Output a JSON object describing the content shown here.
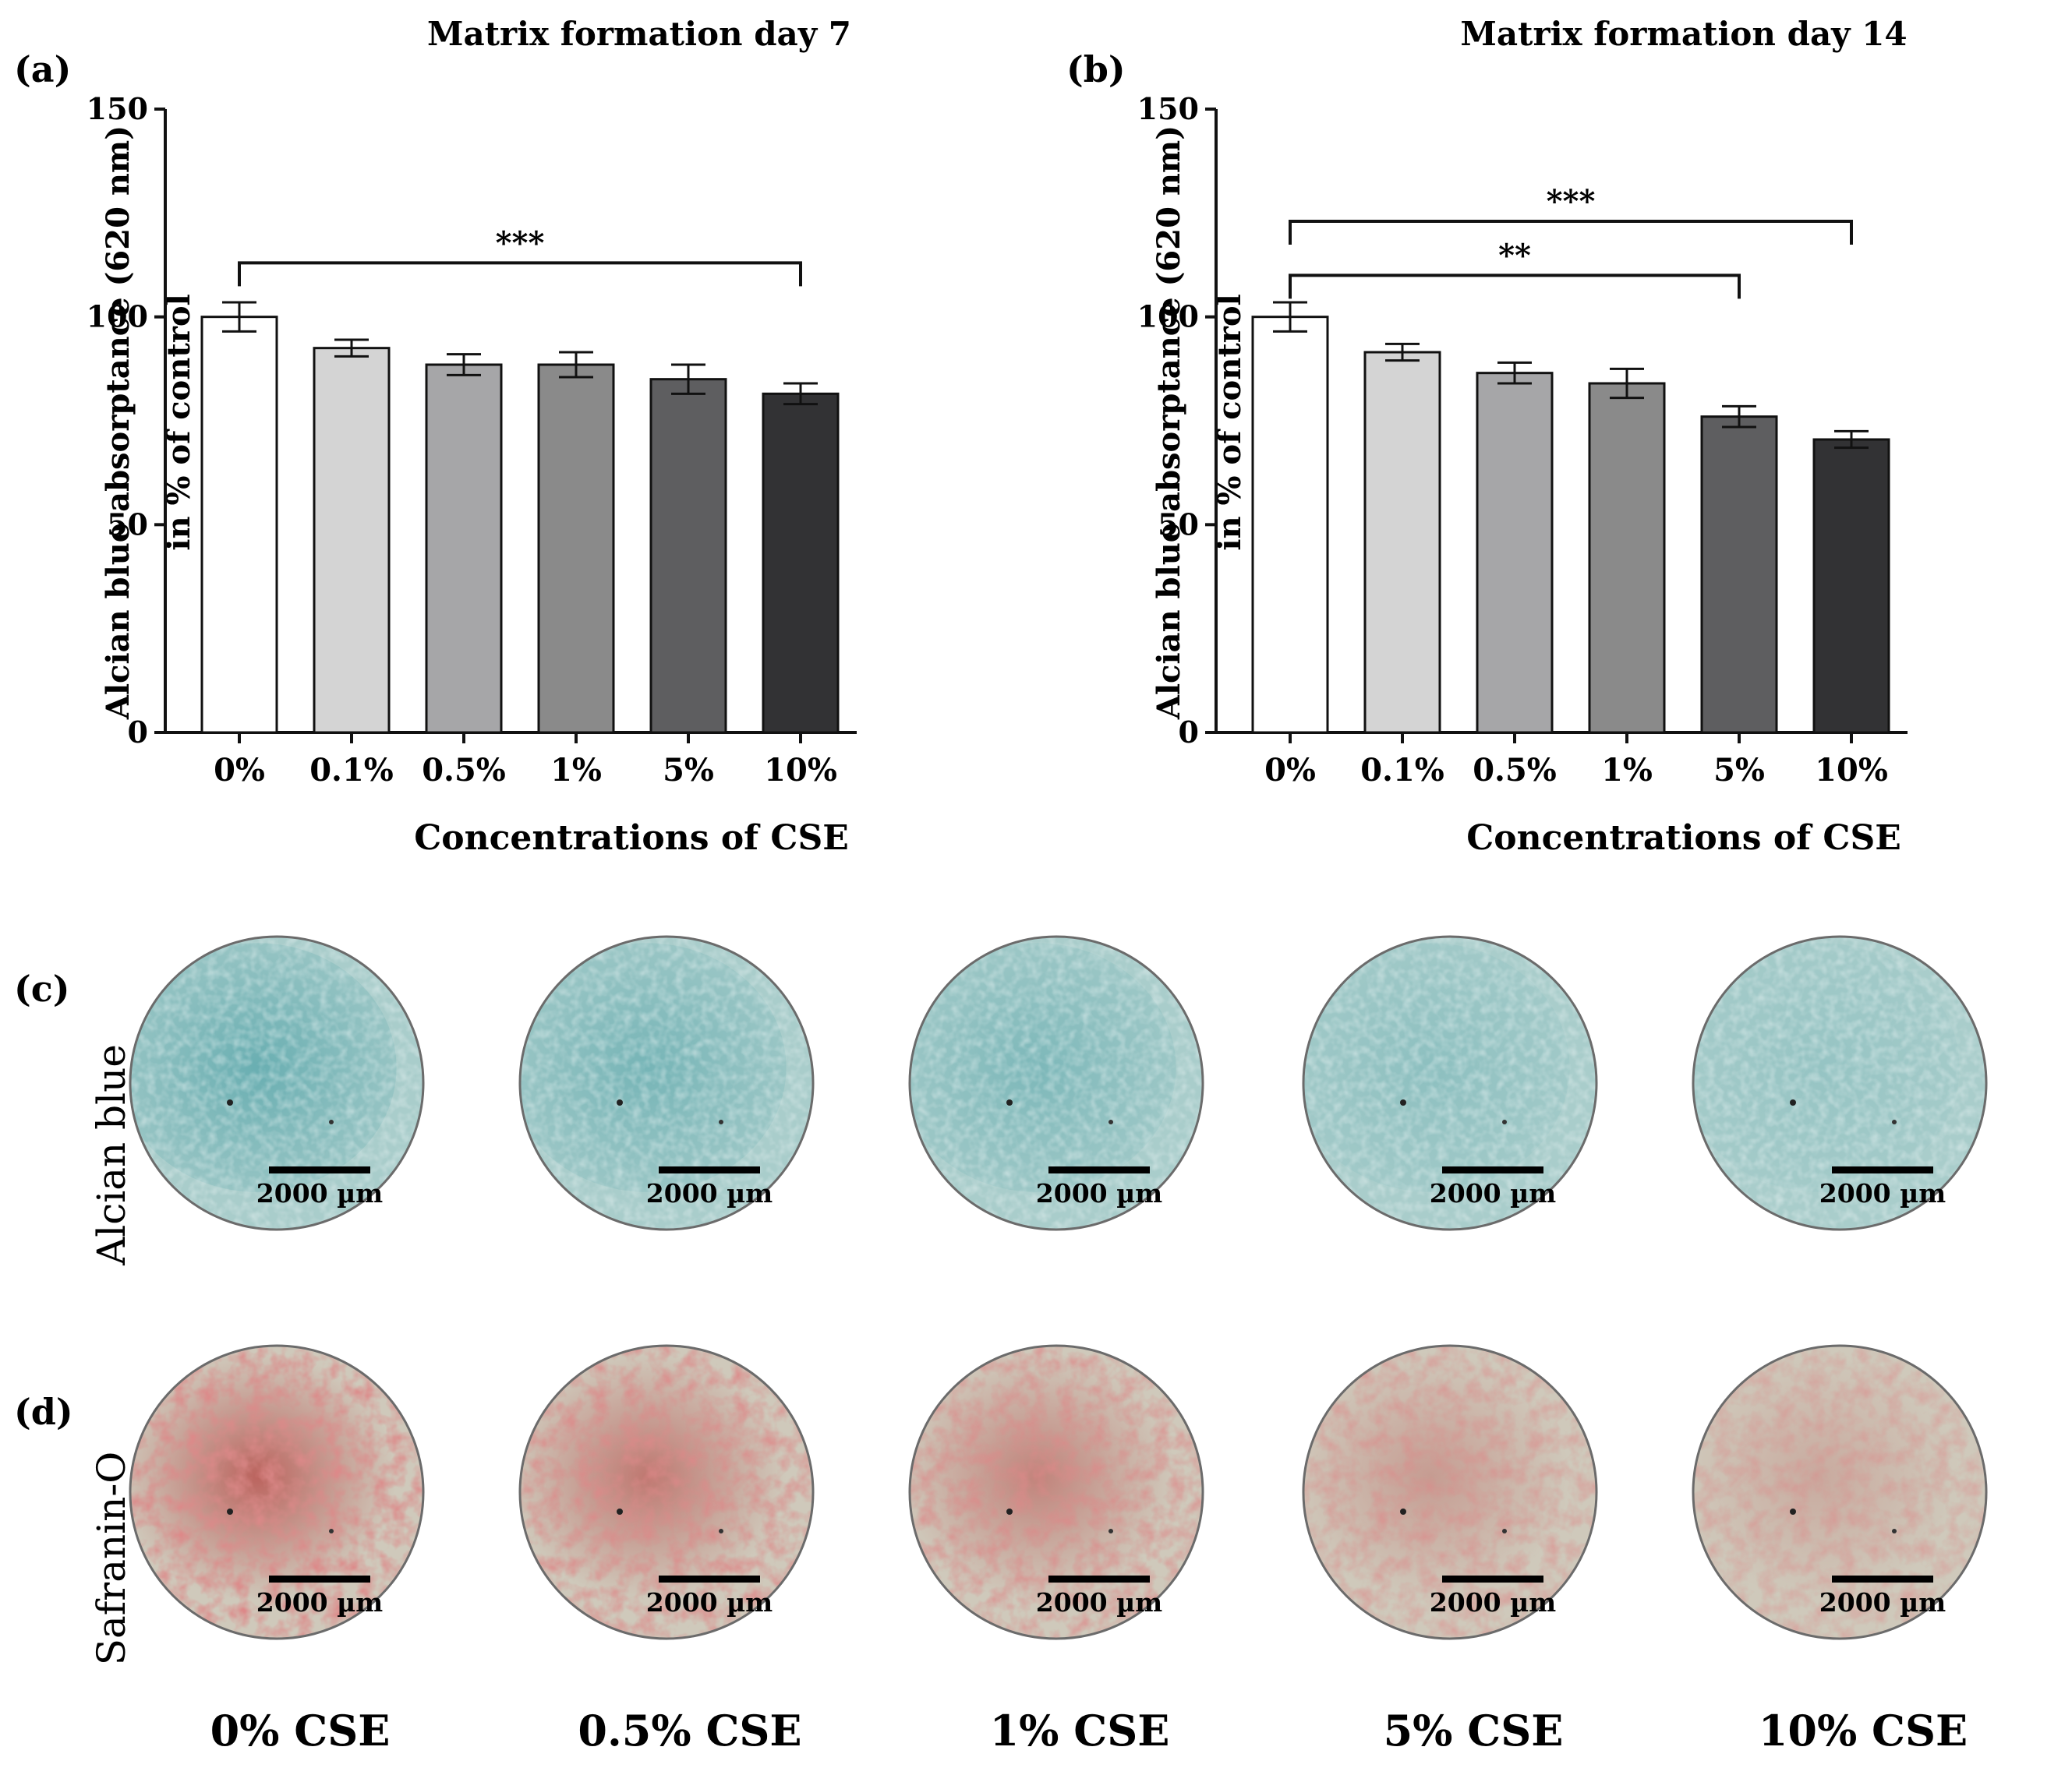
{
  "chart_data": [
    {
      "panel": "(a)",
      "type": "bar",
      "title": "Matrix formation day 7",
      "ylabel_line1": "Alcian blue absorptance (620 nm)",
      "ylabel_line2": "in % of control",
      "xlabel": "Concentrations of CSE",
      "categories": [
        "0%",
        "0.1%",
        "0.5%",
        "1%",
        "5%",
        "10%"
      ],
      "values": [
        100,
        92.5,
        88.5,
        88.5,
        85,
        81.5
      ],
      "errors": [
        3.5,
        2,
        2.5,
        3,
        3.5,
        2.5
      ],
      "bar_colors": [
        "#ffffff",
        "#d4d4d4",
        "#a6a6a8",
        "#8a8a8a",
        "#5e5e60",
        "#323234"
      ],
      "ylim": [
        0,
        150
      ],
      "yticks": [
        0,
        50,
        100,
        150
      ],
      "significance": [
        {
          "from": 0,
          "to": 5,
          "y": 113,
          "label": "***"
        }
      ]
    },
    {
      "panel": "(b)",
      "type": "bar",
      "title": "Matrix formation day 14",
      "ylabel_line1": "Alcian blue absorptance (620 nm)",
      "ylabel_line2": "in % of control",
      "xlabel": "Concentrations of CSE",
      "categories": [
        "0%",
        "0.1%",
        "0.5%",
        "1%",
        "5%",
        "10%"
      ],
      "values": [
        100,
        91.5,
        86.5,
        84,
        76,
        70.5
      ],
      "errors": [
        3.5,
        2,
        2.5,
        3.5,
        2.5,
        2
      ],
      "bar_colors": [
        "#ffffff",
        "#d4d4d4",
        "#a6a6a8",
        "#8a8a8a",
        "#5e5e60",
        "#323234"
      ],
      "ylim": [
        0,
        150
      ],
      "yticks": [
        0,
        50,
        100,
        150
      ],
      "significance": [
        {
          "from": 0,
          "to": 5,
          "y": 123,
          "label": "***"
        },
        {
          "from": 0,
          "to": 4,
          "y": 110,
          "label": "**"
        }
      ]
    }
  ],
  "images": {
    "row_c": {
      "panel": "(c)",
      "stain": "Alcian blue",
      "color": "#5ea9ad"
    },
    "row_d": {
      "panel": "(d)",
      "stain": "Safranin-O",
      "color": "#b8524e"
    },
    "scale_bar": "2000 µm",
    "column_labels": [
      "0% CSE",
      "0.5% CSE",
      "1% CSE",
      "5% CSE",
      "10% CSE"
    ],
    "intensity": [
      1.0,
      0.8,
      0.7,
      0.45,
      0.3
    ]
  }
}
